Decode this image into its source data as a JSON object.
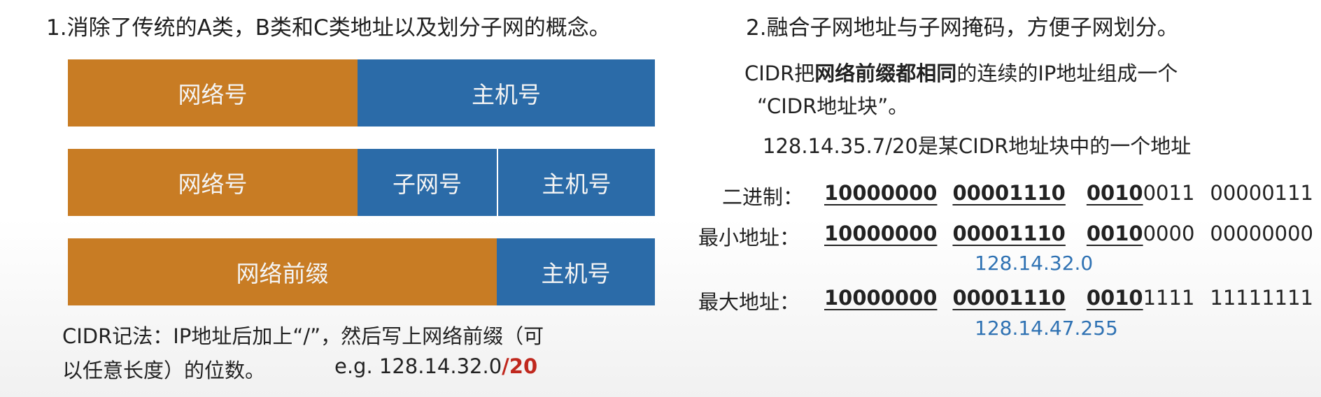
{
  "left": {
    "heading": "1.消除了传统的A类，B类和C类地址以及划分子网的概念。",
    "bars": [
      {
        "network": "网络号",
        "host": "主机号"
      },
      {
        "network": "网络号",
        "subnet": "子网号",
        "host": "主机号"
      },
      {
        "prefix": "网络前缀",
        "host": "主机号"
      }
    ],
    "note_line1": "CIDR记法：IP地址后加上“/”，然后写上网络前缀（可",
    "note_line2": "以任意长度）的位数。",
    "example_prefix": "e.g. 128.14.32.0",
    "example_suffix": "/20"
  },
  "right": {
    "heading": "2.融合子网地址与子网掩码，方便子网划分。",
    "desc_pre": "CIDR把",
    "desc_bold": "网络前缀都相同",
    "desc_post": "的连续的IP地址组成一个",
    "desc_line2": "“CIDR地址块”。",
    "example_line": "128.14.35.7/20是某CIDR地址块中的一个地址",
    "rows": [
      {
        "label": "二进制：",
        "b1": "10000000",
        "b2": "00001110",
        "b3": "0010",
        "rest3": "0011",
        "b4": "00000111",
        "decimal": ""
      },
      {
        "label": "最小地址：",
        "b1": "10000000",
        "b2": "00001110",
        "b3": "0010",
        "rest3": "0000",
        "b4": "00000000",
        "decimal": "128.14.32.0"
      },
      {
        "label": "最大地址：",
        "b1": "10000000",
        "b2": "00001110",
        "b3": "0010",
        "rest3": "1111",
        "b4": "11111111",
        "decimal": "128.14.47.255"
      }
    ],
    "colors": {
      "decimal": "#2f72b3",
      "highlight": "#c0281e"
    }
  },
  "colors": {
    "network": "#c87c24",
    "host": "#2b6ba8"
  }
}
